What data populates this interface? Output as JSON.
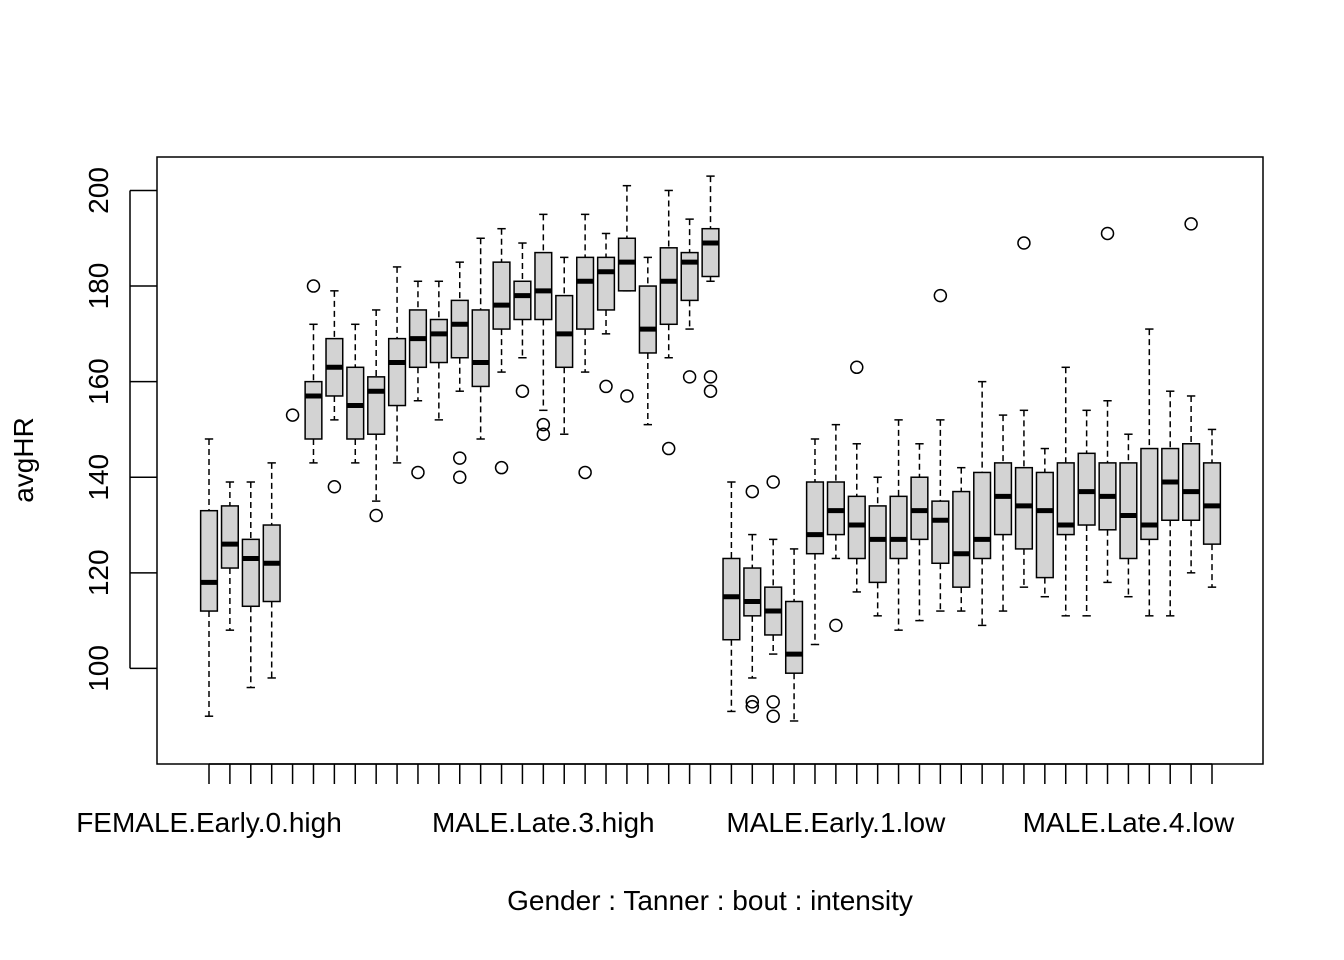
{
  "chart_data": {
    "type": "boxplot",
    "xlabel": "Gender : Tanner : bout : intensity",
    "ylabel": "avgHR",
    "ylim": [
      80,
      207
    ],
    "y_ticks": [
      100,
      120,
      140,
      160,
      180,
      200
    ],
    "x_tick_labels": [
      {
        "position": 1,
        "label": "FEMALE.Early.0.high"
      },
      {
        "position": 17,
        "label": "MALE.Late.3.high"
      },
      {
        "position": 31,
        "label": "MALE.Early.1.low"
      },
      {
        "position": 45,
        "label": "MALE.Late.4.low"
      }
    ],
    "box_fill": "#d3d3d3",
    "boxes": [
      {
        "lw": 90,
        "q1": 112,
        "med": 118,
        "q3": 133,
        "uw": 148,
        "out": []
      },
      {
        "lw": 108,
        "q1": 121,
        "med": 126,
        "q3": 134,
        "uw": 139,
        "out": []
      },
      {
        "lw": 96,
        "q1": 113,
        "med": 123,
        "q3": 127,
        "uw": 139,
        "out": []
      },
      {
        "lw": 98,
        "q1": 114,
        "med": 122,
        "q3": 130,
        "uw": 143,
        "out": []
      },
      {
        "lw": null,
        "q1": null,
        "med": null,
        "q3": null,
        "uw": null,
        "out": [
          153
        ]
      },
      {
        "lw": 143,
        "q1": 148,
        "med": 157,
        "q3": 160,
        "uw": 172,
        "out": [
          180
        ]
      },
      {
        "lw": 152,
        "q1": 157,
        "med": 163,
        "q3": 169,
        "uw": 179,
        "out": [
          138
        ]
      },
      {
        "lw": 143,
        "q1": 148,
        "med": 155,
        "q3": 163,
        "uw": 172,
        "out": []
      },
      {
        "lw": 135,
        "q1": 149,
        "med": 158,
        "q3": 161,
        "uw": 175,
        "out": [
          132
        ]
      },
      {
        "lw": 143,
        "q1": 155,
        "med": 164,
        "q3": 169,
        "uw": 184,
        "out": []
      },
      {
        "lw": 156,
        "q1": 163,
        "med": 169,
        "q3": 175,
        "uw": 181,
        "out": [
          141
        ]
      },
      {
        "lw": 152,
        "q1": 164,
        "med": 170,
        "q3": 173,
        "uw": 181,
        "out": []
      },
      {
        "lw": 158,
        "q1": 165,
        "med": 172,
        "q3": 177,
        "uw": 185,
        "out": [
          144,
          140
        ]
      },
      {
        "lw": 148,
        "q1": 159,
        "med": 164,
        "q3": 175,
        "uw": 190,
        "out": []
      },
      {
        "lw": 162,
        "q1": 171,
        "med": 176,
        "q3": 185,
        "uw": 192,
        "out": [
          142
        ]
      },
      {
        "lw": 165,
        "q1": 173,
        "med": 178,
        "q3": 181,
        "uw": 189,
        "out": [
          158
        ]
      },
      {
        "lw": 154,
        "q1": 173,
        "med": 179,
        "q3": 187,
        "uw": 195,
        "out": [
          151,
          149
        ]
      },
      {
        "lw": 149,
        "q1": 163,
        "med": 170,
        "q3": 178,
        "uw": 186,
        "out": []
      },
      {
        "lw": 162,
        "q1": 171,
        "med": 181,
        "q3": 186,
        "uw": 195,
        "out": [
          141
        ]
      },
      {
        "lw": 170,
        "q1": 175,
        "med": 183,
        "q3": 186,
        "uw": 191,
        "out": [
          159
        ]
      },
      {
        "lw": 179,
        "q1": 179,
        "med": 185,
        "q3": 190,
        "uw": 201,
        "out": [
          157
        ]
      },
      {
        "lw": 151,
        "q1": 166,
        "med": 171,
        "q3": 180,
        "uw": 186,
        "out": []
      },
      {
        "lw": 165,
        "q1": 172,
        "med": 181,
        "q3": 188,
        "uw": 200,
        "out": [
          146
        ]
      },
      {
        "lw": 171,
        "q1": 177,
        "med": 185,
        "q3": 187,
        "uw": 194,
        "out": [
          161
        ]
      },
      {
        "lw": 181,
        "q1": 182,
        "med": 189,
        "q3": 192,
        "uw": 203,
        "out": [
          161,
          158
        ]
      },
      {
        "lw": 91,
        "q1": 106,
        "med": 115,
        "q3": 123,
        "uw": 139,
        "out": []
      },
      {
        "lw": 98,
        "q1": 111,
        "med": 114,
        "q3": 121,
        "uw": 128,
        "out": [
          137,
          93,
          92
        ]
      },
      {
        "lw": 103,
        "q1": 107,
        "med": 112,
        "q3": 117,
        "uw": 127,
        "out": [
          139,
          93,
          90
        ]
      },
      {
        "lw": 89,
        "q1": 99,
        "med": 103,
        "q3": 114,
        "uw": 125,
        "out": []
      },
      {
        "lw": 105,
        "q1": 124,
        "med": 128,
        "q3": 139,
        "uw": 148,
        "out": []
      },
      {
        "lw": 123,
        "q1": 128,
        "med": 133,
        "q3": 139,
        "uw": 151,
        "out": [
          109
        ]
      },
      {
        "lw": 116,
        "q1": 123,
        "med": 130,
        "q3": 136,
        "uw": 147,
        "out": [
          163
        ]
      },
      {
        "lw": 111,
        "q1": 118,
        "med": 127,
        "q3": 134,
        "uw": 140,
        "out": []
      },
      {
        "lw": 108,
        "q1": 123,
        "med": 127,
        "q3": 136,
        "uw": 152,
        "out": []
      },
      {
        "lw": 110,
        "q1": 127,
        "med": 133,
        "q3": 140,
        "uw": 147,
        "out": []
      },
      {
        "lw": 112,
        "q1": 122,
        "med": 131,
        "q3": 135,
        "uw": 152,
        "out": [
          178
        ]
      },
      {
        "lw": 112,
        "q1": 117,
        "med": 124,
        "q3": 137,
        "uw": 142,
        "out": []
      },
      {
        "lw": 109,
        "q1": 123,
        "med": 127,
        "q3": 141,
        "uw": 160,
        "out": []
      },
      {
        "lw": 112,
        "q1": 128,
        "med": 136,
        "q3": 143,
        "uw": 153,
        "out": []
      },
      {
        "lw": 117,
        "q1": 125,
        "med": 134,
        "q3": 142,
        "uw": 154,
        "out": [
          189
        ]
      },
      {
        "lw": 115,
        "q1": 119,
        "med": 133,
        "q3": 141,
        "uw": 146,
        "out": []
      },
      {
        "lw": 111,
        "q1": 128,
        "med": 130,
        "q3": 143,
        "uw": 163,
        "out": []
      },
      {
        "lw": 111,
        "q1": 130,
        "med": 137,
        "q3": 145,
        "uw": 154,
        "out": []
      },
      {
        "lw": 118,
        "q1": 129,
        "med": 136,
        "q3": 143,
        "uw": 156,
        "out": [
          191
        ]
      },
      {
        "lw": 115,
        "q1": 123,
        "med": 132,
        "q3": 143,
        "uw": 149,
        "out": []
      },
      {
        "lw": 111,
        "q1": 127,
        "med": 130,
        "q3": 146,
        "uw": 171,
        "out": []
      },
      {
        "lw": 111,
        "q1": 131,
        "med": 139,
        "q3": 146,
        "uw": 158,
        "out": []
      },
      {
        "lw": 120,
        "q1": 131,
        "med": 137,
        "q3": 147,
        "uw": 157,
        "out": [
          193
        ]
      },
      {
        "lw": 117,
        "q1": 126,
        "med": 134,
        "q3": 143,
        "uw": 150,
        "out": []
      }
    ]
  }
}
